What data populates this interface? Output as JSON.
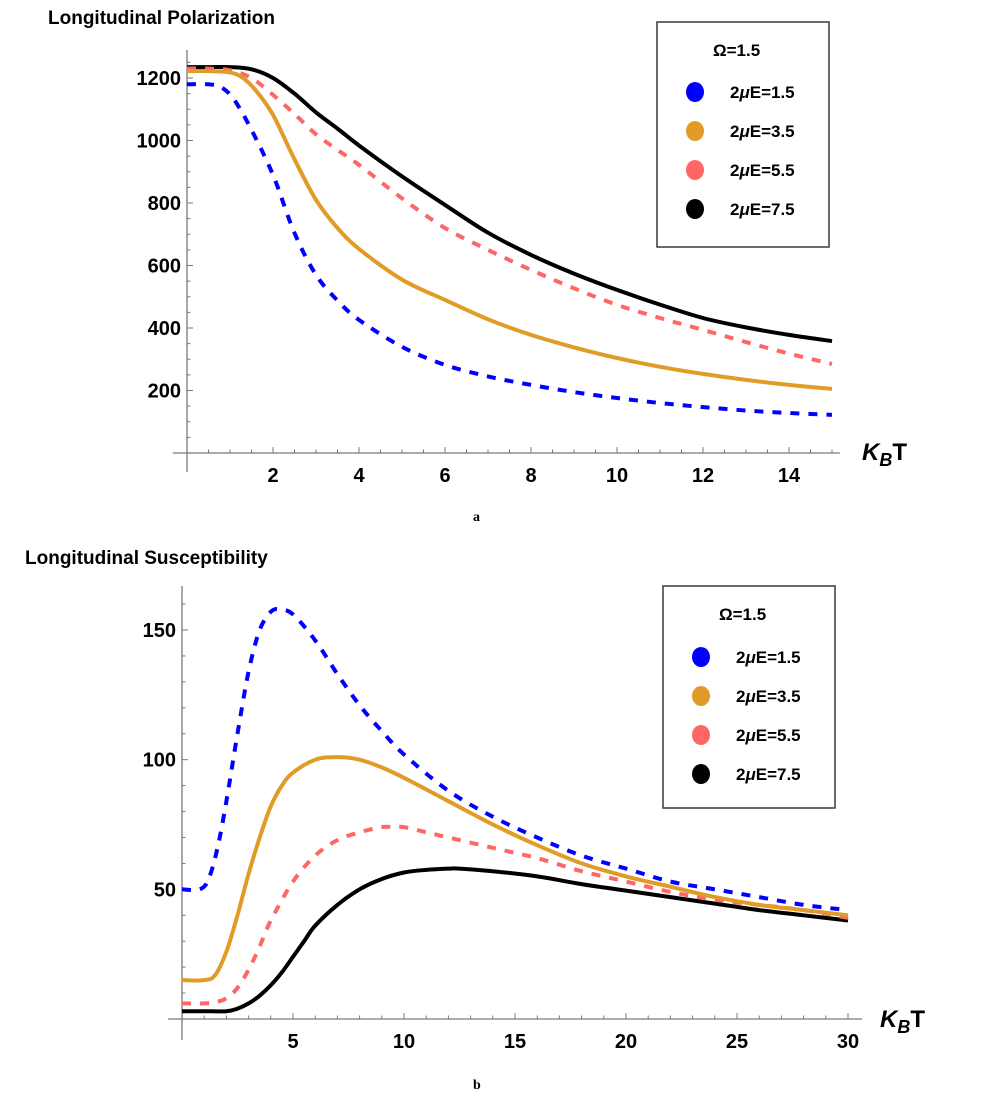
{
  "figure": {
    "captions": [
      "a",
      "b"
    ]
  },
  "chart_data": [
    {
      "id": "a",
      "type": "line",
      "title": "Longitudinal Polarization",
      "xlabel": "K_B T",
      "xlabel_main": "K",
      "xlabel_sub": "B",
      "xlabel_tail": "T",
      "ylabel": "",
      "xlim": [
        0,
        15.3
      ],
      "ylim": [
        0,
        1280
      ],
      "xticks": [
        2,
        4,
        6,
        8,
        10,
        12,
        14
      ],
      "xminor_step": 0.5,
      "yticks": [
        200,
        400,
        600,
        800,
        1000,
        1200
      ],
      "yminor_step": 50,
      "grid": false,
      "legend": {
        "position": "top-right",
        "title": "Ω=1.5",
        "entries": [
          "2μE=1.5",
          "2μE=3.5",
          "2μE=5.5",
          "2μE=7.5"
        ]
      },
      "series": [
        {
          "name": "2μE=1.5",
          "color": "#0000ff",
          "dashed": true,
          "x": [
            0,
            0.5,
            0.8,
            1.1,
            1.5,
            2,
            2.5,
            3,
            3.5,
            4,
            5,
            6,
            7,
            8,
            9,
            10,
            11,
            12,
            13,
            14,
            15
          ],
          "y": [
            1180,
            1180,
            1170,
            1130,
            1034,
            890,
            704,
            570,
            488,
            426,
            340,
            282,
            245,
            218,
            195,
            176,
            160,
            147,
            136,
            128,
            122
          ]
        },
        {
          "name": "2μE=3.5",
          "color": "#e09c26",
          "dashed": false,
          "x": [
            0,
            0.5,
            1,
            1.3,
            1.6,
            2,
            2.5,
            3,
            3.5,
            4,
            5,
            6,
            7,
            8,
            9,
            10,
            11,
            12,
            13,
            14,
            15
          ],
          "y": [
            1222,
            1222,
            1218,
            1200,
            1160,
            1082,
            940,
            810,
            720,
            653,
            555,
            490,
            428,
            378,
            338,
            304,
            276,
            253,
            234,
            218,
            205
          ]
        },
        {
          "name": "2μE=5.5",
          "color": "#ff6666",
          "dashed": true,
          "x": [
            0,
            0.5,
            1,
            1.5,
            2,
            2.5,
            3,
            3.5,
            4,
            5,
            6,
            7,
            8,
            9,
            10,
            11,
            12,
            13,
            14,
            15
          ],
          "y": [
            1230,
            1230,
            1225,
            1200,
            1146,
            1085,
            1020,
            970,
            922,
            815,
            720,
            650,
            586,
            527,
            474,
            432,
            394,
            355,
            318,
            285
          ]
        },
        {
          "name": "2μE=7.5",
          "color": "#000000",
          "dashed": false,
          "x": [
            0,
            0.5,
            1,
            1.5,
            2,
            2.5,
            3,
            3.5,
            4,
            5,
            6,
            7,
            8,
            9,
            10,
            11,
            12,
            13,
            14,
            15
          ],
          "y": [
            1235,
            1235,
            1235,
            1228,
            1200,
            1150,
            1090,
            1038,
            984,
            885,
            794,
            705,
            634,
            574,
            522,
            475,
            432,
            402,
            378,
            358
          ]
        }
      ]
    },
    {
      "id": "b",
      "type": "line",
      "title": "Longitudinal Susceptibility",
      "xlabel": "K_B T",
      "xlabel_main": "K",
      "xlabel_sub": "B",
      "xlabel_tail": "T",
      "ylabel": "",
      "xlim": [
        0,
        30.2
      ],
      "ylim": [
        0,
        167
      ],
      "xticks": [
        5,
        10,
        15,
        20,
        25,
        30
      ],
      "xminor_step": 1,
      "yticks": [
        50,
        100,
        150
      ],
      "yminor_step": 10,
      "grid": false,
      "legend": {
        "position": "top-right",
        "title": "Ω=1.5",
        "entries": [
          "2μE=1.5",
          "2μE=3.5",
          "2μE=5.5",
          "2μE=7.5"
        ]
      },
      "series": [
        {
          "name": "2μE=1.5",
          "color": "#0000ff",
          "dashed": true,
          "x": [
            0,
            0.8,
            1.2,
            1.6,
            2,
            2.5,
            3,
            3.5,
            4,
            4.4,
            5,
            6,
            7,
            8,
            9,
            10,
            12,
            14,
            16,
            18,
            20,
            22,
            24,
            26,
            28,
            30
          ],
          "y": [
            50,
            50,
            54,
            66,
            84,
            110,
            134,
            150,
            157,
            158,
            156,
            146,
            133,
            121,
            111,
            102,
            88,
            78,
            70,
            63,
            58,
            53,
            50,
            47,
            44,
            42
          ]
        },
        {
          "name": "2μE=3.5",
          "color": "#e09c26",
          "dashed": false,
          "x": [
            0,
            1,
            1.5,
            2,
            2.5,
            3,
            3.5,
            4,
            4.5,
            5,
            6,
            7,
            8,
            9,
            10,
            12,
            14,
            16,
            18,
            20,
            22,
            24,
            26,
            28,
            30
          ],
          "y": [
            15,
            15,
            17,
            26,
            40,
            56,
            70,
            82,
            90,
            95,
            100,
            101,
            100,
            97,
            93,
            84,
            75,
            67,
            60,
            55,
            51,
            47,
            44,
            42,
            40
          ]
        },
        {
          "name": "2μE=5.5",
          "color": "#ff6666",
          "dashed": true,
          "x": [
            0,
            1,
            1.5,
            2,
            2.5,
            3,
            3.5,
            4,
            5,
            6,
            7,
            8,
            9,
            9.5,
            10,
            11,
            12,
            14,
            16,
            18,
            20,
            22,
            24,
            26,
            28,
            30
          ],
          "y": [
            6,
            6,
            6.5,
            8,
            12,
            19,
            28,
            38,
            53,
            63,
            69,
            72,
            74,
            74,
            74,
            72,
            70,
            66,
            62,
            57,
            53,
            49,
            46,
            44,
            42,
            39
          ]
        },
        {
          "name": "2μE=7.5",
          "color": "#000000",
          "dashed": false,
          "x": [
            0,
            1,
            2,
            2.5,
            3,
            3.5,
            4,
            4.5,
            5,
            5.5,
            6,
            7,
            8,
            9,
            10,
            11,
            12,
            12.5,
            14,
            16,
            18,
            20,
            22,
            24,
            26,
            28,
            30
          ],
          "y": [
            3,
            3,
            3,
            4,
            6,
            9,
            13,
            18,
            24,
            30,
            36,
            44,
            50,
            54,
            56.5,
            57.5,
            58,
            58,
            57,
            55,
            52,
            49.5,
            47,
            44.5,
            42,
            40,
            38
          ]
        }
      ]
    }
  ]
}
